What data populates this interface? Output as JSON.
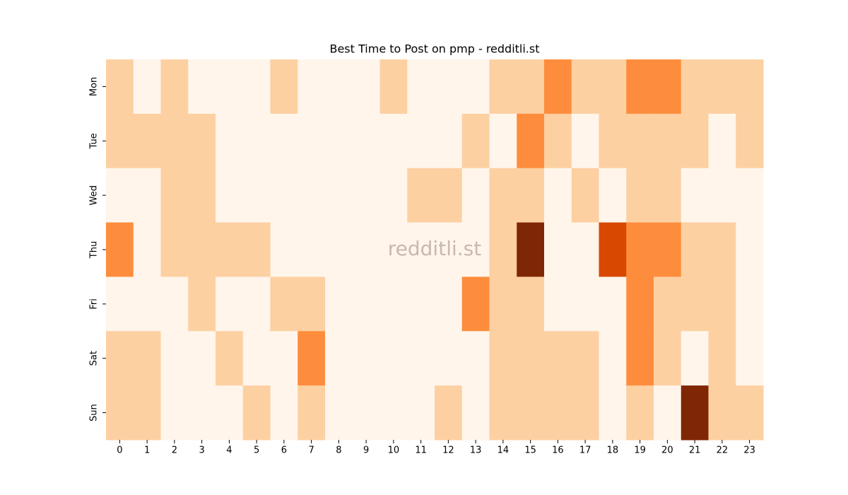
{
  "chart_data": {
    "type": "heatmap",
    "title": "Best Time to Post on pmp - redditli.st",
    "watermark": "redditli.st",
    "x": [
      0,
      1,
      2,
      3,
      4,
      5,
      6,
      7,
      8,
      9,
      10,
      11,
      12,
      13,
      14,
      15,
      16,
      17,
      18,
      19,
      20,
      21,
      22,
      23
    ],
    "y": [
      "Mon",
      "Tue",
      "Wed",
      "Thu",
      "Fri",
      "Sat",
      "Sun"
    ],
    "z": [
      [
        1,
        0,
        1,
        0,
        0,
        0,
        1,
        0,
        0,
        0,
        1,
        0,
        0,
        0,
        1,
        1,
        2,
        1,
        1,
        2,
        2,
        1,
        1,
        1
      ],
      [
        1,
        1,
        1,
        1,
        0,
        0,
        0,
        0,
        0,
        0,
        0,
        0,
        0,
        1,
        0,
        2,
        1,
        0,
        1,
        1,
        1,
        1,
        0,
        1
      ],
      [
        0,
        0,
        1,
        1,
        0,
        0,
        0,
        0,
        0,
        0,
        0,
        1,
        1,
        0,
        1,
        1,
        0,
        1,
        0,
        1,
        1,
        0,
        0,
        0
      ],
      [
        2,
        0,
        1,
        1,
        1,
        1,
        0,
        0,
        0,
        0,
        0,
        0,
        0,
        0,
        1,
        4,
        0,
        0,
        3,
        2,
        2,
        1,
        1,
        0
      ],
      [
        0,
        0,
        0,
        1,
        0,
        0,
        1,
        1,
        0,
        0,
        0,
        0,
        0,
        2,
        1,
        1,
        0,
        0,
        0,
        2,
        1,
        1,
        1,
        0
      ],
      [
        1,
        1,
        0,
        0,
        1,
        0,
        0,
        2,
        0,
        0,
        0,
        0,
        0,
        0,
        1,
        1,
        1,
        1,
        0,
        2,
        1,
        0,
        1,
        0
      ],
      [
        1,
        1,
        0,
        0,
        0,
        1,
        0,
        1,
        0,
        0,
        0,
        0,
        1,
        0,
        1,
        1,
        1,
        1,
        0,
        1,
        0,
        4,
        1,
        1
      ]
    ],
    "zlim": [
      0,
      4
    ],
    "colormap": [
      "#fff5eb",
      "#fdd0a2",
      "#fd8d3c",
      "#d94801",
      "#7f2704"
    ]
  }
}
